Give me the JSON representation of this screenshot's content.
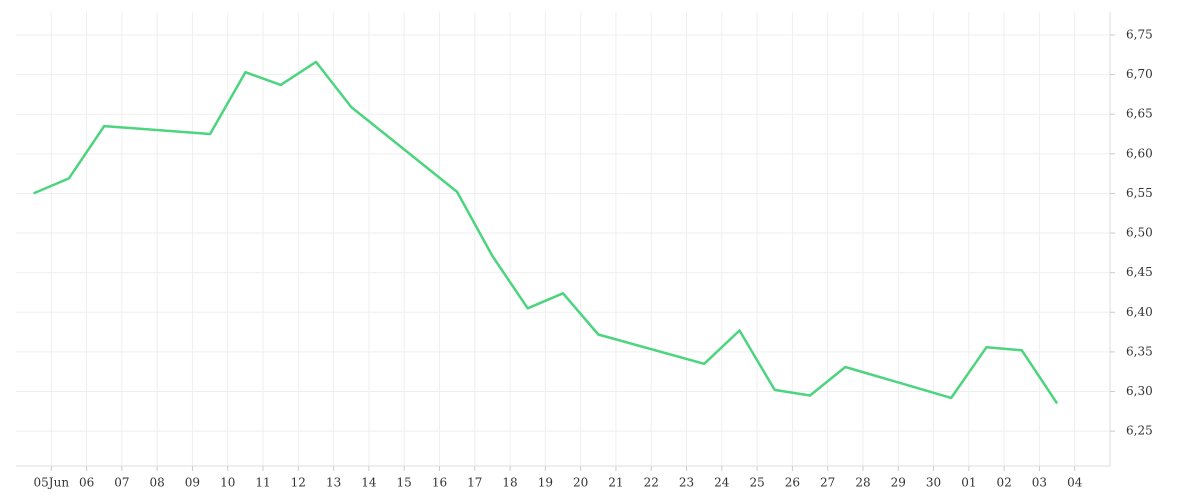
{
  "chart_data": {
    "type": "line",
    "series": [
      {
        "color": "#4cd47e",
        "x": [
          -0.5,
          0.5,
          1.5,
          4.5,
          5.5,
          6.5,
          7.5,
          8.5,
          11.5,
          12.5,
          13.5,
          14.5,
          15.5,
          18.5,
          19.5,
          20.5,
          21.5,
          22.5,
          25.5,
          26.5,
          27.5,
          28.5
        ],
        "values": [
          6.55,
          6.569,
          6.635,
          6.625,
          6.703,
          6.687,
          6.716,
          6.659,
          6.552,
          6.471,
          6.405,
          6.424,
          6.372,
          6.335,
          6.377,
          6.302,
          6.295,
          6.331,
          6.292,
          6.356,
          6.352,
          6.285
        ]
      }
    ],
    "xlim": [
      -1,
      30
    ],
    "xticks": [
      {
        "value": 0,
        "label": "05Jun"
      },
      {
        "value": 1,
        "label": "06"
      },
      {
        "value": 2,
        "label": "07"
      },
      {
        "value": 3,
        "label": "08"
      },
      {
        "value": 4,
        "label": "09"
      },
      {
        "value": 5,
        "label": "10"
      },
      {
        "value": 6,
        "label": "11"
      },
      {
        "value": 7,
        "label": "12"
      },
      {
        "value": 8,
        "label": "13"
      },
      {
        "value": 9,
        "label": "14"
      },
      {
        "value": 10,
        "label": "15"
      },
      {
        "value": 11,
        "label": "16"
      },
      {
        "value": 12,
        "label": "17"
      },
      {
        "value": 13,
        "label": "18"
      },
      {
        "value": 14,
        "label": "19"
      },
      {
        "value": 15,
        "label": "20"
      },
      {
        "value": 16,
        "label": "21"
      },
      {
        "value": 17,
        "label": "22"
      },
      {
        "value": 18,
        "label": "23"
      },
      {
        "value": 19,
        "label": "24"
      },
      {
        "value": 20,
        "label": "25"
      },
      {
        "value": 21,
        "label": "26"
      },
      {
        "value": 22,
        "label": "27"
      },
      {
        "value": 23,
        "label": "28"
      },
      {
        "value": 24,
        "label": "29"
      },
      {
        "value": 25,
        "label": "30"
      },
      {
        "value": 26,
        "label": "01"
      },
      {
        "value": 27,
        "label": "02"
      },
      {
        "value": 28,
        "label": "03"
      },
      {
        "value": 29,
        "label": "04"
      }
    ],
    "ylim": [
      6.206,
      6.779
    ],
    "yticks": [
      {
        "value": 6.25,
        "label": "6,25"
      },
      {
        "value": 6.3,
        "label": "6,30"
      },
      {
        "value": 6.35,
        "label": "6,35"
      },
      {
        "value": 6.4,
        "label": "6,40"
      },
      {
        "value": 6.45,
        "label": "6,45"
      },
      {
        "value": 6.5,
        "label": "6,50"
      },
      {
        "value": 6.55,
        "label": "6,55"
      },
      {
        "value": 6.6,
        "label": "6,60"
      },
      {
        "value": 6.65,
        "label": "6,65"
      },
      {
        "value": 6.7,
        "label": "6,70"
      },
      {
        "value": 6.75,
        "label": "6,75"
      }
    ],
    "grid": true
  }
}
